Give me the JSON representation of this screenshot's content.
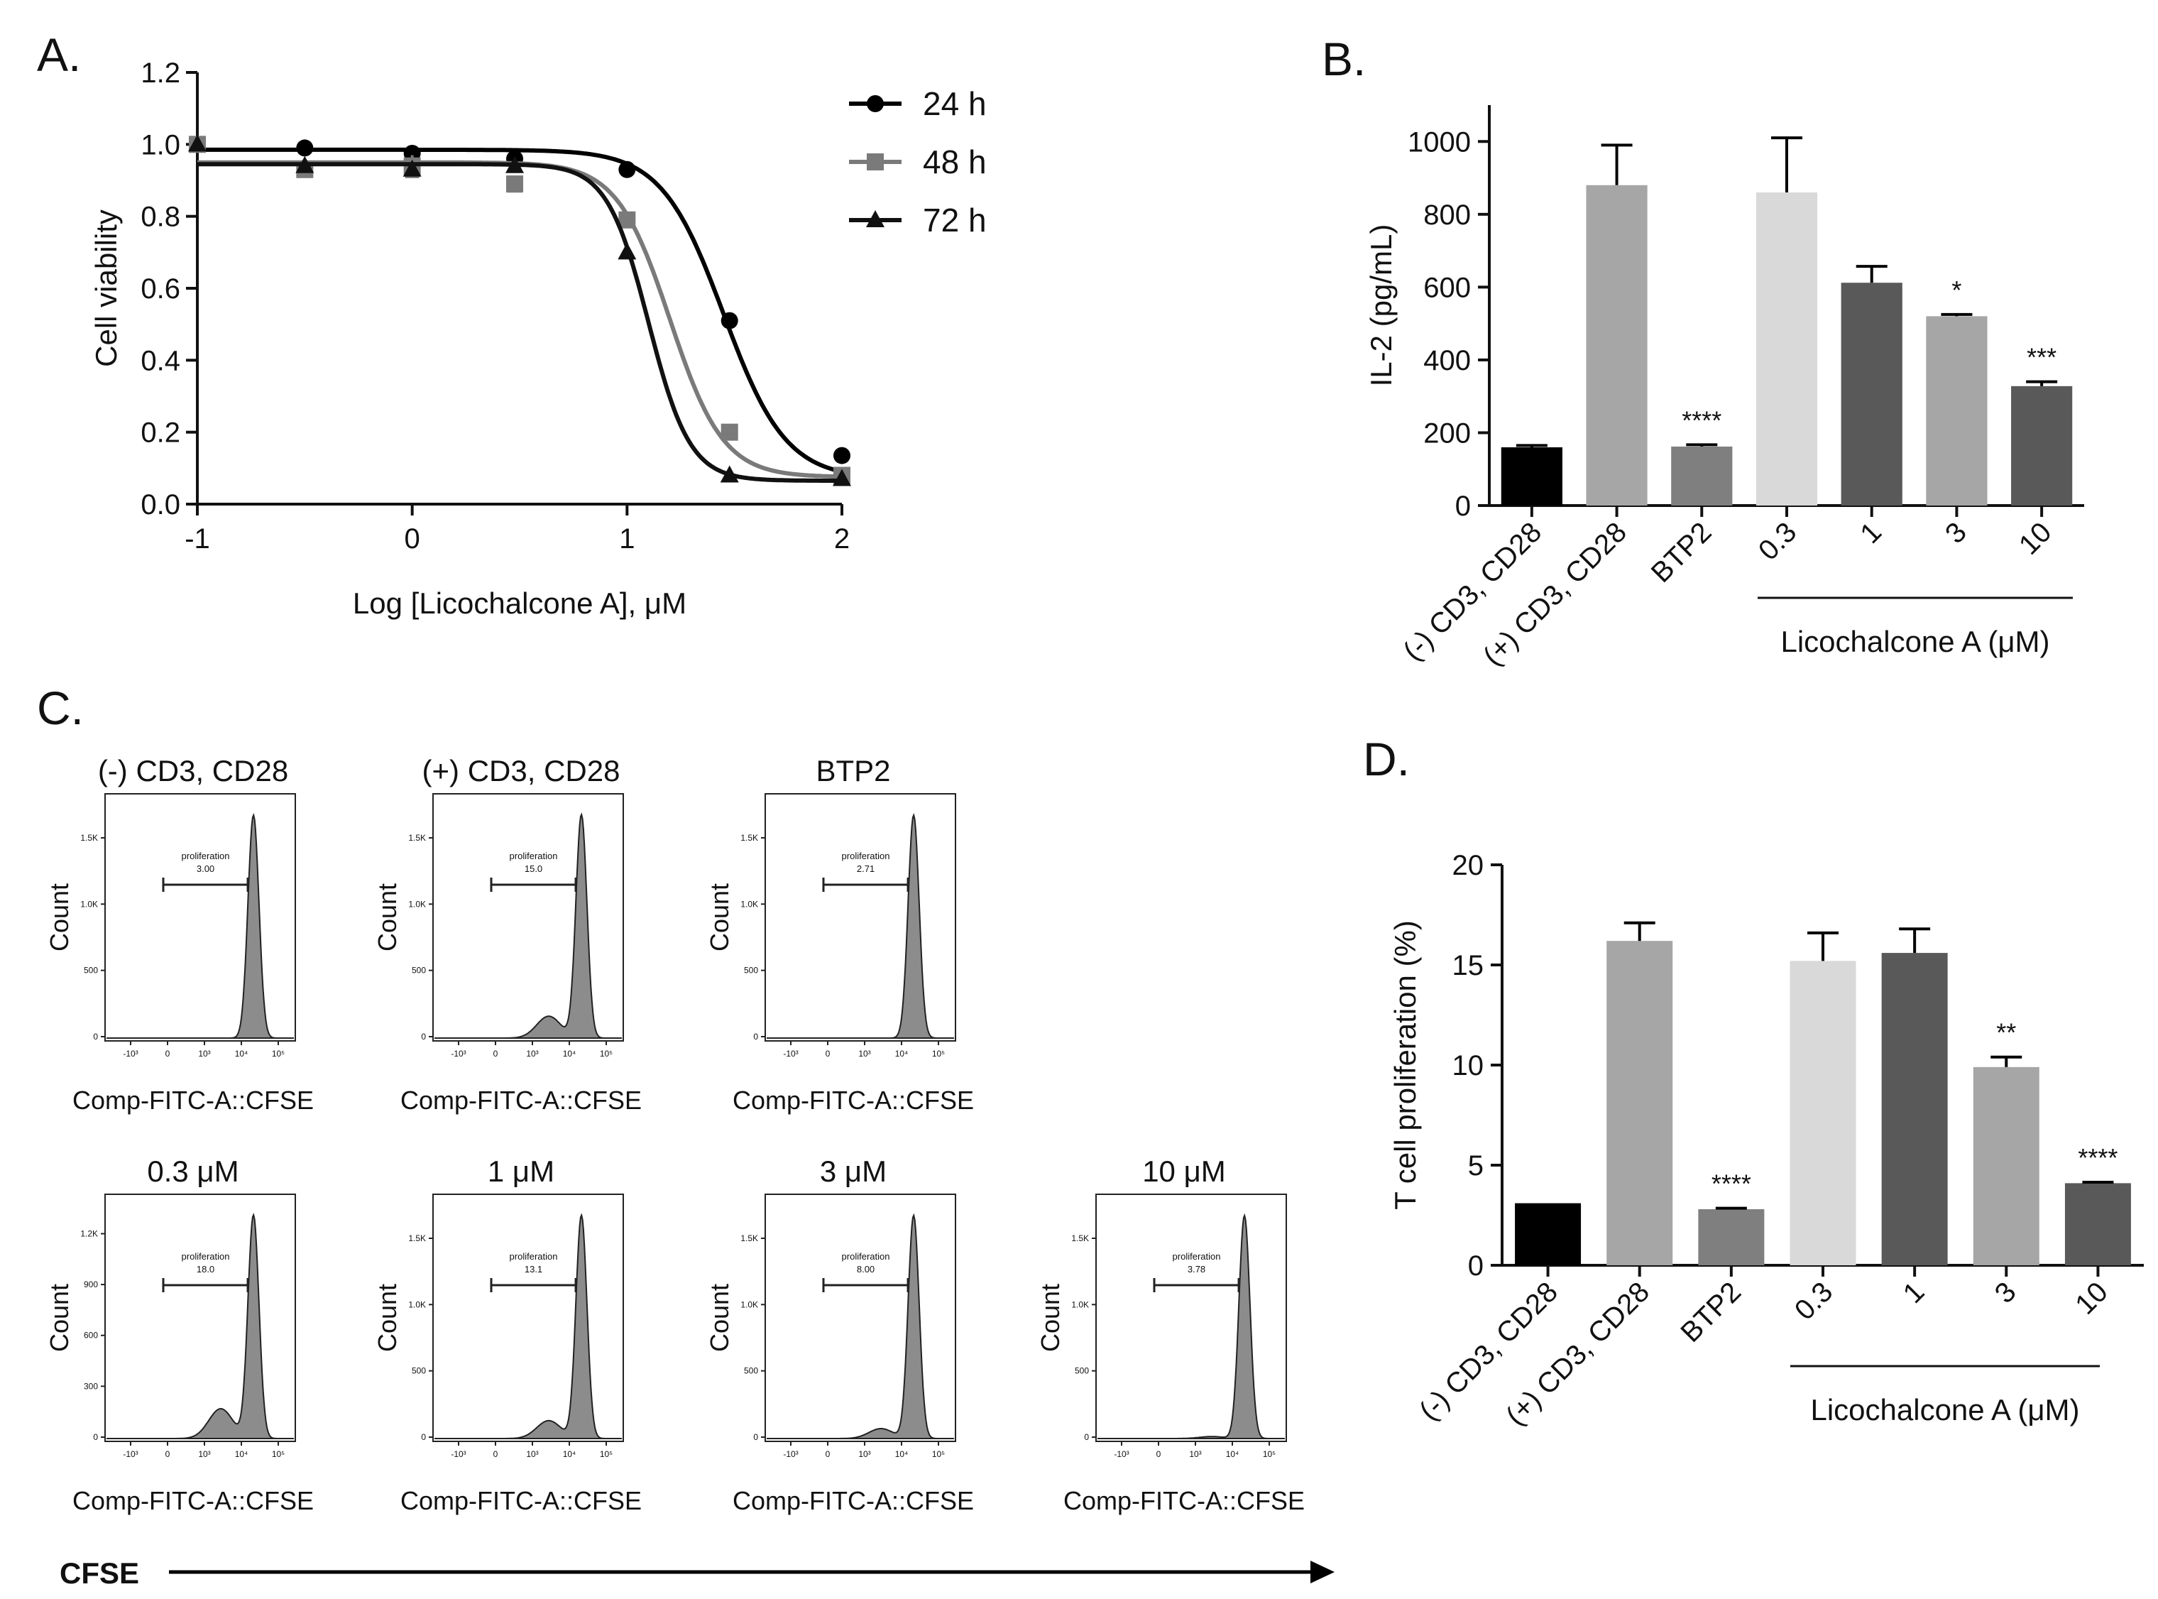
{
  "figure": {
    "panel_labels": [
      "A.",
      "B.",
      "C.",
      "D."
    ]
  },
  "colors": {
    "axis": "#111111",
    "black": "#000000",
    "gray48": "#7a7a7a",
    "black72": "#111111",
    "bar_neg": "#000000",
    "bar_pos": "#a6a6a6",
    "bar_btp2": "#7f7f7f",
    "bar_03": "#d9d9d9",
    "bar_1": "#595959",
    "bar_3": "#a6a6a6",
    "bar_10": "#595959",
    "histogram_fill": "#8c8c8c"
  },
  "chart_data": [
    {
      "id": "A",
      "type": "line",
      "title": "",
      "xlabel": "Log [Licochalcone A], μM",
      "ylabel": "Cell viability",
      "xlim": [
        -1,
        2
      ],
      "ylim": [
        0,
        1.2
      ],
      "xticks": [
        -1,
        0,
        1,
        2
      ],
      "xtick_labels": [
        "-1",
        "0",
        "1",
        "2"
      ],
      "yticks": [
        0,
        0.2,
        0.4,
        0.6,
        0.8,
        1.0,
        1.2
      ],
      "ytick_labels": [
        "0.0",
        "0.2",
        "0.4",
        "0.6",
        "0.8",
        "1.0",
        "1.2"
      ],
      "legend_position": "top-right",
      "x": [
        -1,
        -0.5,
        0,
        0.477,
        1,
        1.477,
        2
      ],
      "series": [
        {
          "name": "24 h",
          "marker": "circle",
          "color": "#000000",
          "values": [
            1.0,
            0.99,
            0.975,
            0.96,
            0.93,
            0.51,
            0.135
          ],
          "errors": [
            0,
            0,
            0,
            0,
            0,
            0,
            0
          ],
          "fit": {
            "top": 0.985,
            "bottom": 0.07,
            "log_ic50": 1.45,
            "hill": 3.0
          }
        },
        {
          "name": "48 h",
          "marker": "square",
          "color": "#7a7a7a",
          "values": [
            1.0,
            0.93,
            0.94,
            0.89,
            0.79,
            0.2,
            0.08
          ],
          "errors": [
            0,
            0,
            0.03,
            0.02,
            0,
            0,
            0
          ],
          "fit": {
            "top": 0.95,
            "bottom": 0.075,
            "log_ic50": 1.2,
            "hill": 3.5
          }
        },
        {
          "name": "72 h",
          "marker": "triangle",
          "color": "#111111",
          "values": [
            1.0,
            0.94,
            0.93,
            0.94,
            0.7,
            0.08,
            0.07
          ],
          "errors": [
            0,
            0,
            0,
            0,
            0,
            0,
            0
          ],
          "fit": {
            "top": 0.945,
            "bottom": 0.065,
            "log_ic50": 1.1,
            "hill": 4.5
          }
        }
      ]
    },
    {
      "id": "B",
      "type": "bar",
      "ylabel": "IL-2 (pg/mL)",
      "xlabel": "Licochalcone A (μM)",
      "ylim": [
        0,
        1100
      ],
      "yticks": [
        0,
        200,
        400,
        600,
        800,
        1000
      ],
      "ytick_labels": [
        "0",
        "200",
        "400",
        "600",
        "800",
        "1000"
      ],
      "categories": [
        "(-) CD3, CD28",
        "(+) CD3, CD28",
        "BTP2",
        "0.3",
        "1",
        "3",
        "10"
      ],
      "values": [
        160,
        880,
        162,
        860,
        612,
        520,
        328
      ],
      "errors": [
        5,
        110,
        5,
        150,
        45,
        5,
        12
      ],
      "significance": [
        "",
        "",
        "****",
        "",
        "",
        "*",
        "***"
      ],
      "bar_colors": [
        "#000000",
        "#a6a6a6",
        "#7f7f7f",
        "#d9d9d9",
        "#595959",
        "#a6a6a6",
        "#595959"
      ]
    },
    {
      "id": "D",
      "type": "bar",
      "ylabel": "T cell proliferation (%)",
      "xlabel": "Licochalcone A (μM)",
      "ylim": [
        0,
        20
      ],
      "yticks": [
        0,
        5,
        10,
        15,
        20
      ],
      "ytick_labels": [
        "0",
        "5",
        "10",
        "15",
        "20"
      ],
      "categories": [
        "(-) CD3, CD28",
        "(+) CD3, CD28",
        "BTP2",
        "0.3",
        "1",
        "3",
        "10"
      ],
      "values": [
        3.1,
        16.2,
        2.8,
        15.2,
        15.6,
        9.9,
        4.1
      ],
      "errors": [
        0,
        0.9,
        0.05,
        1.4,
        1.2,
        0.5,
        0.05
      ],
      "significance": [
        "",
        "",
        "****",
        "",
        "",
        "**",
        "****"
      ],
      "bar_colors": [
        "#000000",
        "#a6a6a6",
        "#7f7f7f",
        "#d9d9d9",
        "#595959",
        "#a6a6a6",
        "#595959"
      ]
    },
    {
      "id": "C",
      "type": "histogram",
      "axis_arrow_label": "CFSE",
      "xlabel": "Comp-FITC-A::CFSE",
      "ylabel": "Count",
      "gate_label": "proliferation",
      "xtick_labels": [
        "-10³",
        "0",
        "10³",
        "10⁴",
        "10⁵"
      ],
      "panels": [
        {
          "title": "(-) CD3, CD28",
          "gate_value": "3.00",
          "peak_position": 0.78,
          "shoulder": 0.0,
          "ytick_labels": [
            "0",
            "500",
            "1.0K",
            "1.5K"
          ]
        },
        {
          "title": "(+) CD3, CD28",
          "gate_value": "15.0",
          "peak_position": 0.78,
          "shoulder": 0.22,
          "ytick_labels": [
            "0",
            "500",
            "1.0K",
            "1.5K"
          ]
        },
        {
          "title": "BTP2",
          "gate_value": "2.71",
          "peak_position": 0.78,
          "shoulder": 0.0,
          "ytick_labels": [
            "0",
            "500",
            "1.0K",
            "1.5K"
          ]
        },
        {
          "title": "0.3 μM",
          "gate_value": "18.0",
          "peak_position": 0.78,
          "shoulder": 0.3,
          "ytick_labels": [
            "0",
            "300",
            "600",
            "900",
            "1.2K"
          ]
        },
        {
          "title": "1 μM",
          "gate_value": "13.1",
          "peak_position": 0.78,
          "shoulder": 0.18,
          "ytick_labels": [
            "0",
            "500",
            "1.0K",
            "1.5K"
          ]
        },
        {
          "title": "3 μM",
          "gate_value": "8.00",
          "peak_position": 0.78,
          "shoulder": 0.1,
          "ytick_labels": [
            "0",
            "500",
            "1.0K",
            "1.5K"
          ]
        },
        {
          "title": "10 μM",
          "gate_value": "3.78",
          "peak_position": 0.78,
          "shoulder": 0.02,
          "ytick_labels": [
            "0",
            "500",
            "1.0K",
            "1.5K"
          ]
        }
      ]
    }
  ]
}
